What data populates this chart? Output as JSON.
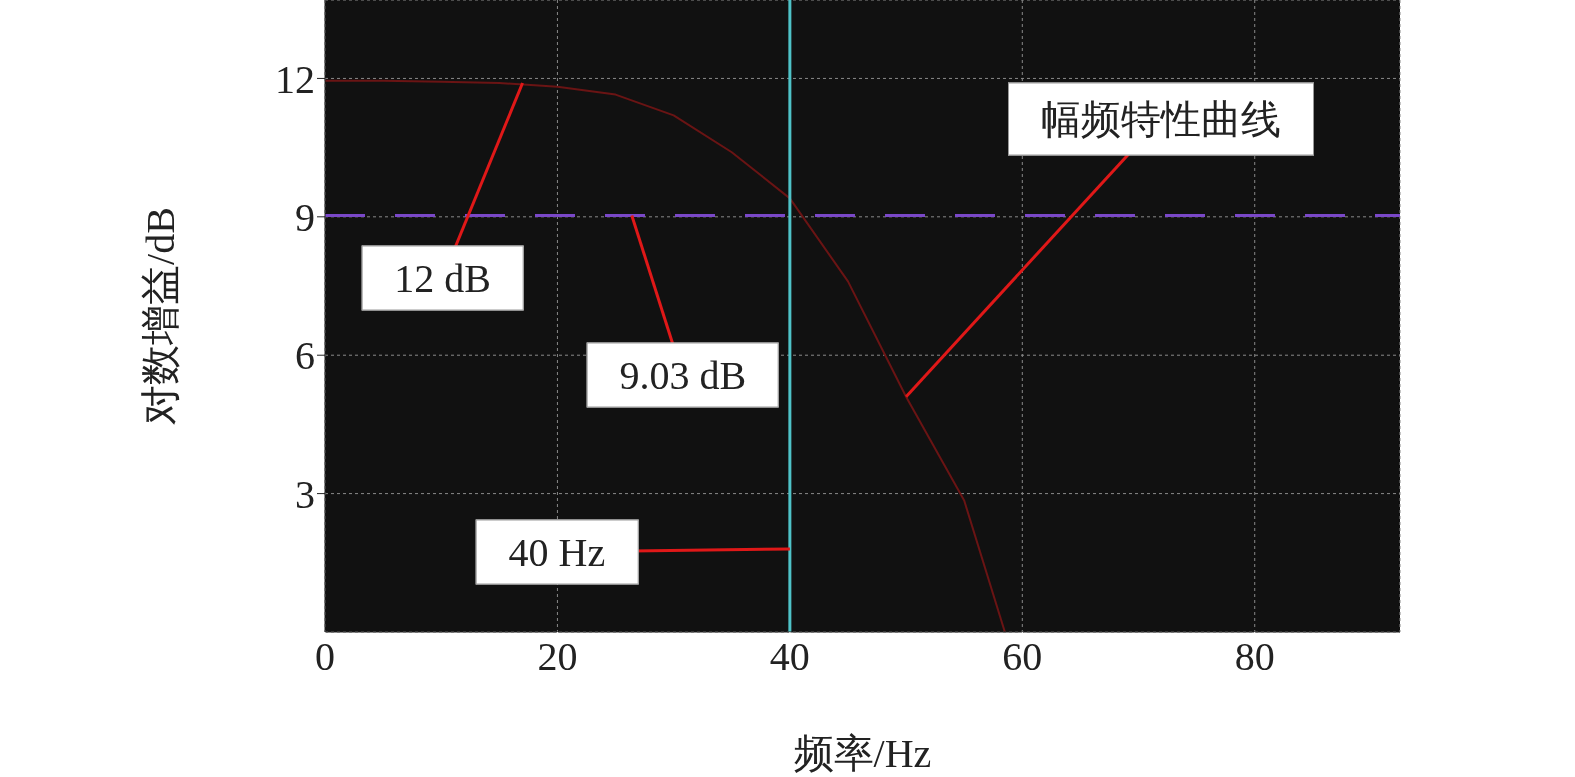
{
  "chart_data": {
    "type": "line",
    "xlabel": "频率/Hz",
    "ylabel": "对数增益/dB",
    "x": [
      0,
      5,
      10,
      15,
      20,
      25,
      30,
      35,
      40,
      45,
      50,
      55,
      58.5
    ],
    "series": [
      {
        "color": "#6a1414",
        "values": [
          11.95,
          11.95,
          11.93,
          11.9,
          11.82,
          11.65,
          11.2,
          10.4,
          9.4,
          7.6,
          5.1,
          2.85,
          0
        ]
      }
    ],
    "xlim": [
      0,
      92.5
    ],
    "ylim": [
      0,
      13.7
    ],
    "xticks": [
      0,
      20,
      40,
      60,
      80
    ],
    "yticks": [
      3,
      6,
      9,
      12
    ],
    "grid": true,
    "marker": "none",
    "line_style": "solid",
    "ref_lines": [
      {
        "axis": "x",
        "value": 40,
        "color": "#4fc3c8",
        "line_style": "solid"
      },
      {
        "axis": "y",
        "value": 9.03,
        "color": "#7a48c8",
        "line_style": "dashed"
      }
    ],
    "annotations": [
      {
        "text": "12 dB",
        "x": 17,
        "y": 11.9
      },
      {
        "text": "9.03 dB",
        "x": 26.4,
        "y": 9.03
      },
      {
        "text": "40 Hz",
        "x": 40,
        "y": 1.8
      },
      {
        "text": "幅频特性曲线",
        "x": 50,
        "y": 5.1
      }
    ]
  }
}
